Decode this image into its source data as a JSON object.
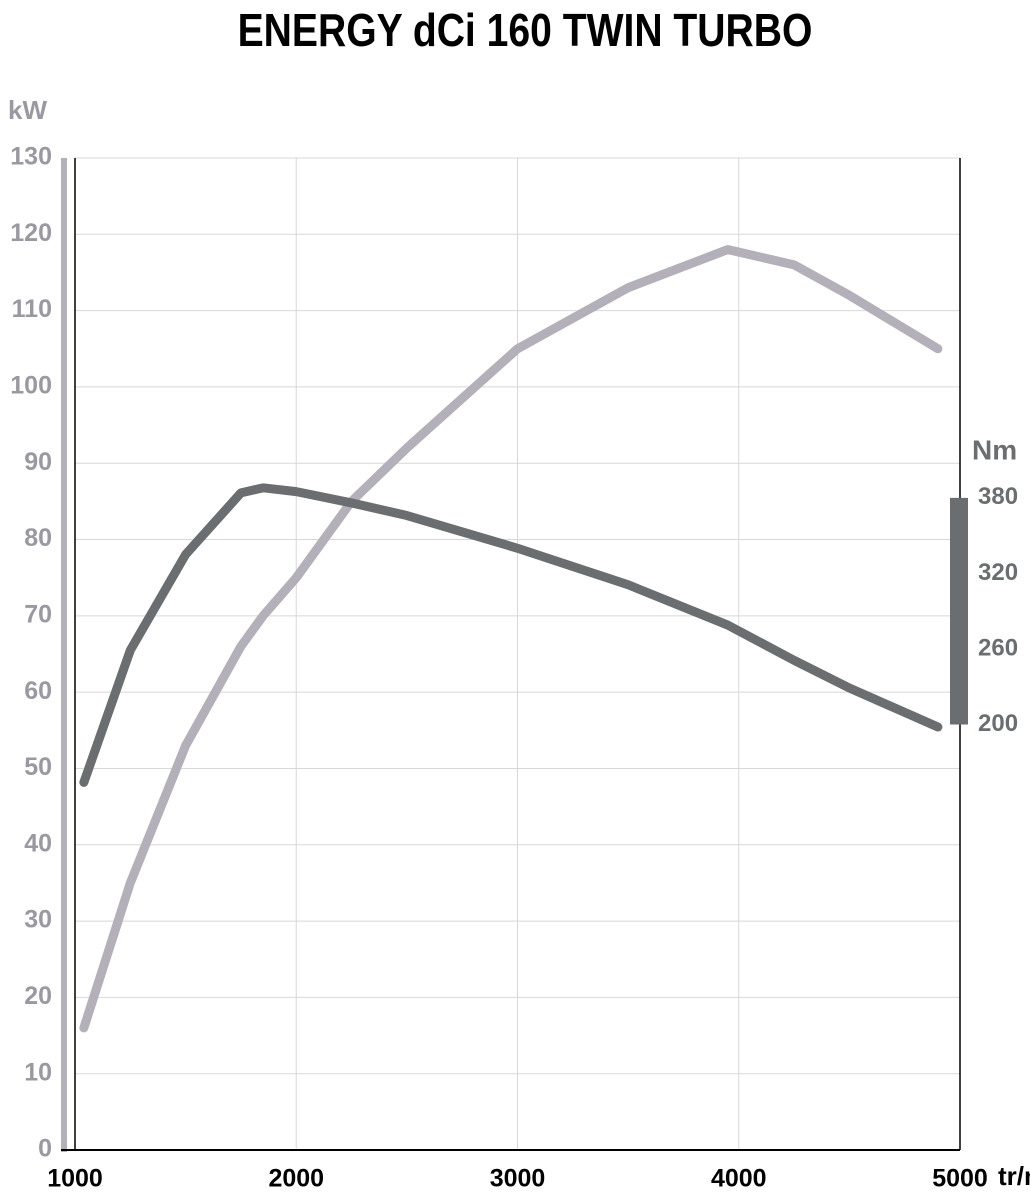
{
  "chart_data": {
    "type": "line",
    "title": "ENERGY dCi 160 TWIN TURBO",
    "y_label": "kW",
    "y2_label": "Nm",
    "x_label": "tr/min",
    "x": [
      1040,
      1250,
      1500,
      1750,
      1850,
      2000,
      2250,
      2500,
      3000,
      3500,
      3950,
      4250,
      4500,
      4900
    ],
    "series": [
      {
        "color": "#b3b0ba",
        "values": [
          16,
          35,
          53,
          66,
          70,
          75,
          85,
          92,
          105,
          113,
          118,
          116,
          112,
          105
        ]
      },
      {
        "color": "#6b6e70",
        "axis": "y2",
        "values": [
          154,
          259,
          335,
          384,
          388,
          385,
          376,
          366,
          340,
          311,
          279,
          251,
          229,
          198
        ]
      }
    ],
    "xlim": [
      1000,
      5000
    ],
    "xticks": [
      1000,
      2000,
      3000,
      4000,
      5000
    ],
    "ylim": [
      0,
      130
    ],
    "yticks": [
      0,
      10,
      20,
      30,
      40,
      50,
      60,
      70,
      80,
      90,
      100,
      110,
      120,
      130
    ],
    "y2lim": [
      -138,
      650
    ],
    "y2ticks": [
      200,
      260,
      320,
      380
    ],
    "grid": true
  }
}
